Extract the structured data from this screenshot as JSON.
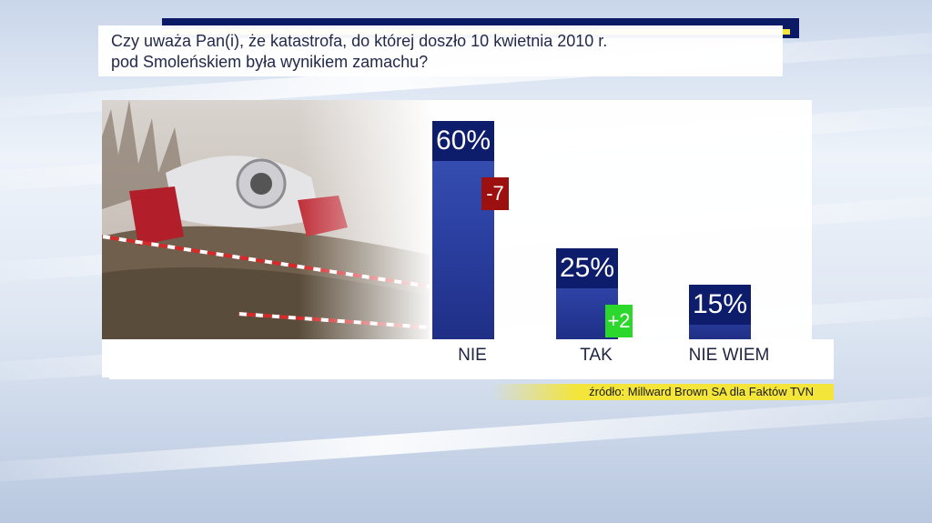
{
  "question": "Czy uważa Pan(i), że katastrofa, do której doszło 10 kwietnia 2010 r.\npod Smoleńskiem była wynikiem zamachu?",
  "source": "źródło: Millward Brown SA dla Faktów TVN",
  "colors": {
    "bar": "#2a3fa0",
    "cap": "#0d1c6b",
    "negative": "#9c1010",
    "positive": "#2dd82d"
  },
  "chart_data": {
    "type": "bar",
    "title": "Czy uważa Pan(i), że katastrofa, do której doszło 10 kwietnia 2010 r. pod Smoleńskiem była wynikiem zamachu?",
    "categories": [
      "NIE",
      "TAK",
      "NIE WIEM"
    ],
    "values": [
      60,
      25,
      15
    ],
    "value_labels": [
      "60%",
      "25%",
      "15%"
    ],
    "changes": [
      "-7",
      "+2",
      ""
    ],
    "unit": "%",
    "ylim": [
      0,
      60
    ],
    "grid": false,
    "legend": "none"
  }
}
